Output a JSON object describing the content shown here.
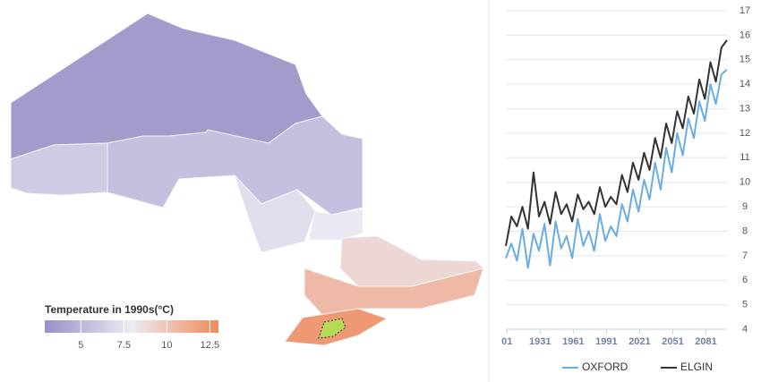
{
  "map": {
    "legend_title": "Temperature in 1990s(°C)",
    "legend_range": [
      2.9,
      13
    ],
    "legend_ticks": [
      5,
      7.5,
      10,
      12.5
    ],
    "colorscale": [
      "#9b8fc7",
      "#ecebf3",
      "#f08a5c"
    ],
    "regions": [
      3.5,
      6.2,
      5.5,
      7.2,
      7.8,
      9,
      10.5,
      12.2
    ]
  },
  "chart_data": {
    "type": "line",
    "x": [
      1900,
      1905,
      1910,
      1915,
      1920,
      1925,
      1930,
      1935,
      1940,
      1945,
      1950,
      1955,
      1960,
      1965,
      1970,
      1975,
      1980,
      1985,
      1990,
      1995,
      2000,
      2005,
      2010,
      2015,
      2020,
      2025,
      2030,
      2035,
      2040,
      2045,
      2050,
      2055,
      2060,
      2065,
      2070,
      2075,
      2080,
      2085,
      2090,
      2095,
      2100
    ],
    "xlim": [
      1900,
      2100
    ],
    "xticks": [
      {
        "value": 1901,
        "label": "01"
      },
      1931,
      1961,
      1991,
      2021,
      2051,
      2081
    ],
    "ylim": [
      4,
      17
    ],
    "yticks": [
      4,
      5,
      6,
      7,
      8,
      9,
      10,
      11,
      12,
      13,
      14,
      15,
      16,
      17
    ],
    "grid": true,
    "series": [
      {
        "name": "OXFORD",
        "color": "#6aade4",
        "values": [
          6.9,
          7.5,
          6.8,
          8.1,
          6.5,
          7.9,
          7.2,
          8.3,
          6.6,
          8.4,
          7.3,
          7.8,
          6.9,
          8.5,
          7.4,
          8.0,
          7.2,
          8.7,
          7.6,
          8.2,
          7.8,
          9.1,
          8.4,
          9.7,
          8.8,
          10.1,
          9.3,
          10.8,
          9.7,
          11.4,
          10.4,
          12.0,
          11.1,
          12.6,
          11.8,
          13.3,
          12.5,
          14.0,
          13.2,
          14.4,
          14.6
        ]
      },
      {
        "name": "ELGIN",
        "color": "#333333",
        "values": [
          7.4,
          8.6,
          8.2,
          9.0,
          8.1,
          10.4,
          8.6,
          9.2,
          8.3,
          9.6,
          8.7,
          9.1,
          8.4,
          9.5,
          8.9,
          9.2,
          8.7,
          9.8,
          9.0,
          9.4,
          9.1,
          10.3,
          9.6,
          10.8,
          10.1,
          11.2,
          10.5,
          11.8,
          11.0,
          12.4,
          11.6,
          12.9,
          12.2,
          13.5,
          12.8,
          14.2,
          13.4,
          14.9,
          14.1,
          15.5,
          15.8
        ]
      }
    ]
  }
}
